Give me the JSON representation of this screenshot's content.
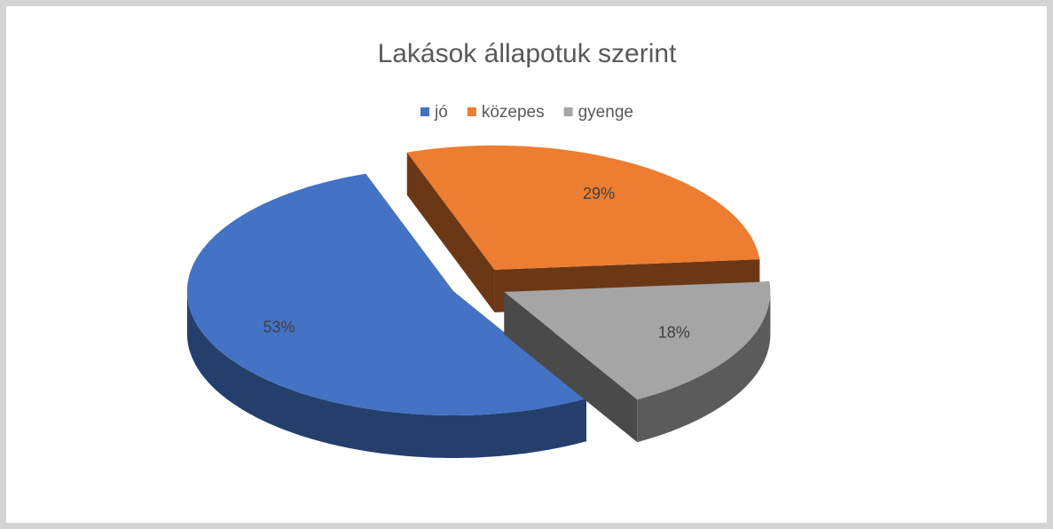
{
  "chart_data": {
    "type": "pie3d",
    "title": "Lakások állapotuk szerint",
    "categories": [
      "jó",
      "közepes",
      "gyenge"
    ],
    "values": [
      53,
      29,
      18
    ],
    "value_labels": [
      "53%",
      "29%",
      "18%"
    ],
    "colors": [
      "#4472c4",
      "#ed7d31",
      "#a5a5a5"
    ],
    "legend": "top"
  }
}
